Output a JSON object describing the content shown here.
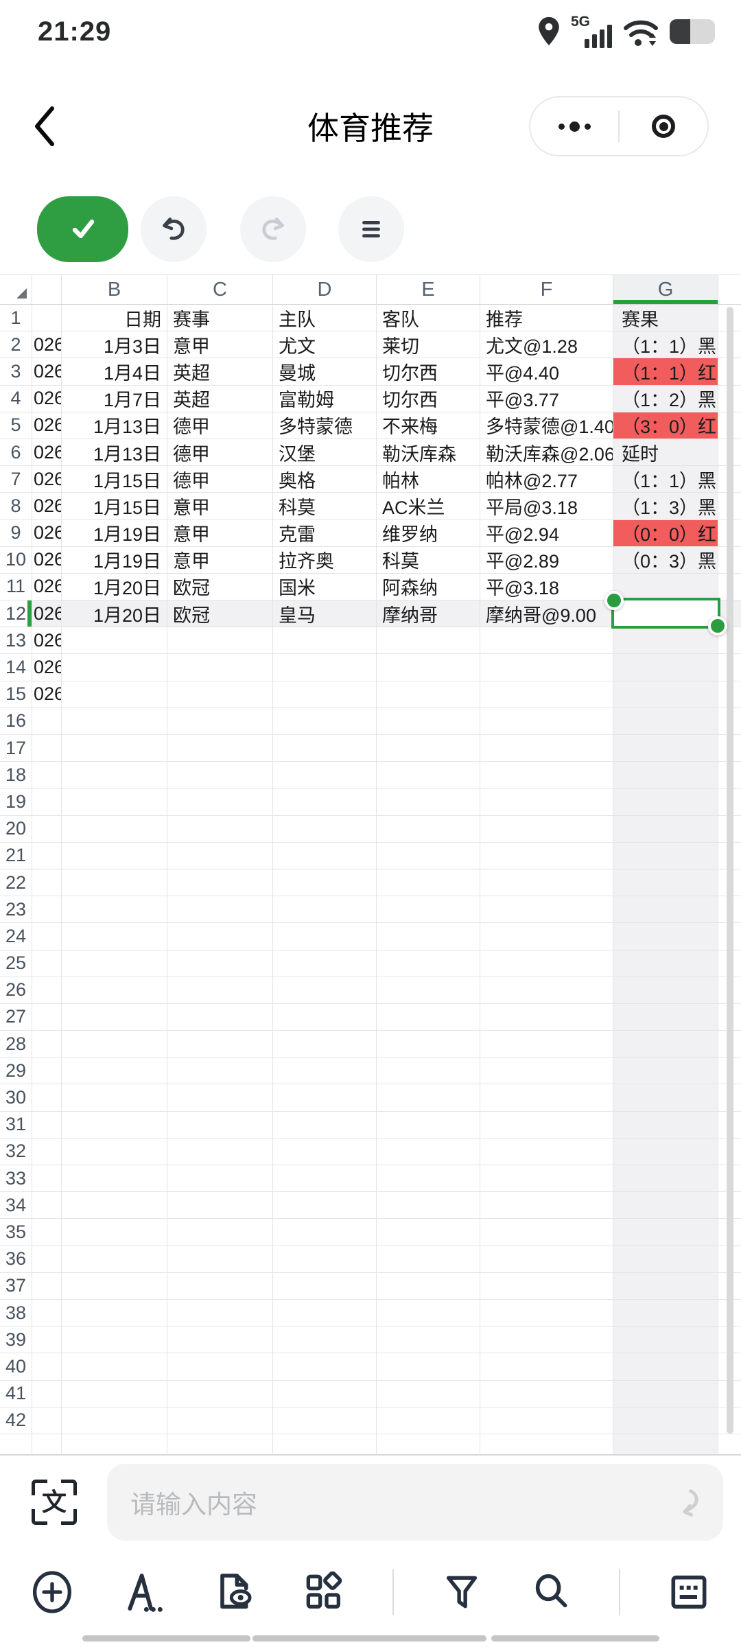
{
  "status_bar": {
    "time": "21:29",
    "network_label": "5G"
  },
  "nav": {
    "title": "体育推荐"
  },
  "input_bar": {
    "placeholder": "请输入内容"
  },
  "colors": {
    "accent_green": "#2e9e42",
    "result_red": "#f15c5c",
    "selected_column_tint": "#f1f1f3"
  },
  "sheet": {
    "column_letters": [
      "B",
      "C",
      "D",
      "E",
      "F",
      "G"
    ],
    "total_rows": 42,
    "selection": {
      "cell": "G12",
      "row": 12
    },
    "rows": [
      {
        "n": 1,
        "cells": [
          "",
          "日期",
          "赛事",
          "主队",
          "客队",
          "推荐",
          "赛果"
        ],
        "g_red": false
      },
      {
        "n": 2,
        "cells": [
          "026",
          "1月3日",
          "意甲",
          "尤文",
          "莱切",
          "尤文@1.28",
          "（1：1）黑"
        ],
        "g_red": false
      },
      {
        "n": 3,
        "cells": [
          "026",
          "1月4日",
          "英超",
          "曼城",
          "切尔西",
          "平@4.40",
          "（1：1）红"
        ],
        "g_red": true
      },
      {
        "n": 4,
        "cells": [
          "026",
          "1月7日",
          "英超",
          "富勒姆",
          "切尔西",
          "平@3.77",
          "（1：2）黑"
        ],
        "g_red": false
      },
      {
        "n": 5,
        "cells": [
          "026",
          "1月13日",
          "德甲",
          "多特蒙德",
          "不来梅",
          "多特蒙德@1.40",
          "（3：0）红"
        ],
        "g_red": true
      },
      {
        "n": 6,
        "cells": [
          "026",
          "1月13日",
          "德甲",
          "汉堡",
          "勒沃库森",
          "勒沃库森@2.06",
          "延时"
        ],
        "g_red": false
      },
      {
        "n": 7,
        "cells": [
          "026",
          "1月15日",
          "德甲",
          "奥格",
          "帕林",
          "帕林@2.77",
          "（1：1）黑"
        ],
        "g_red": false
      },
      {
        "n": 8,
        "cells": [
          "026",
          "1月15日",
          "意甲",
          "科莫",
          "AC米兰",
          "平局@3.18",
          "（1：3）黑"
        ],
        "g_red": false
      },
      {
        "n": 9,
        "cells": [
          "026",
          "1月19日",
          "意甲",
          "克雷",
          "维罗纳",
          "平@2.94",
          "（0：0）红"
        ],
        "g_red": true
      },
      {
        "n": 10,
        "cells": [
          "026",
          "1月19日",
          "意甲",
          "拉齐奥",
          "科莫",
          "平@2.89",
          "（0：3）黑"
        ],
        "g_red": false
      },
      {
        "n": 11,
        "cells": [
          "026",
          "1月20日",
          "欧冠",
          "国米",
          "阿森纳",
          "平@3.18",
          ""
        ],
        "g_red": false
      },
      {
        "n": 12,
        "cells": [
          "026",
          "1月20日",
          "欧冠",
          "皇马",
          "摩纳哥",
          "摩纳哥@9.00",
          ""
        ],
        "g_red": false,
        "selected": true
      },
      {
        "n": 13,
        "cells": [
          "026",
          "",
          "",
          "",
          "",
          "",
          ""
        ],
        "g_red": false
      },
      {
        "n": 14,
        "cells": [
          "026",
          "",
          "",
          "",
          "",
          "",
          ""
        ],
        "g_red": false
      },
      {
        "n": 15,
        "cells": [
          "026",
          "",
          "",
          "",
          "",
          "",
          ""
        ],
        "g_red": false
      }
    ]
  }
}
